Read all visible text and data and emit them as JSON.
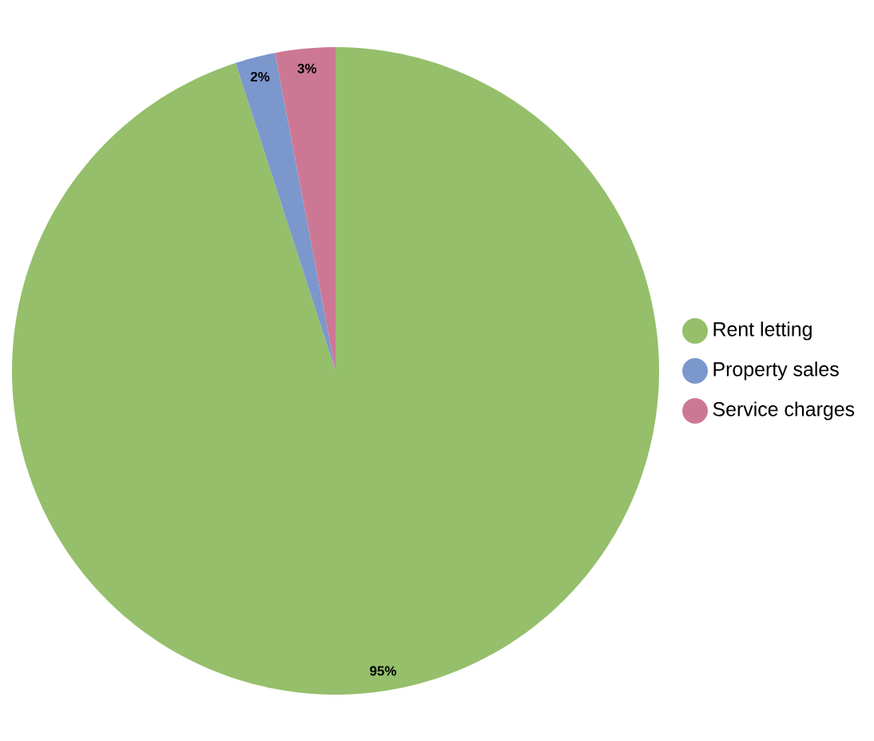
{
  "chart_data": {
    "type": "pie",
    "categories": [
      "Rent letting",
      "Property sales",
      "Service charges"
    ],
    "values": [
      95,
      2,
      3
    ],
    "colors": [
      "#95bf6b",
      "#7b97cc",
      "#cc7895"
    ],
    "value_labels": [
      "95%",
      "2%",
      "3%"
    ],
    "legend": "right"
  }
}
